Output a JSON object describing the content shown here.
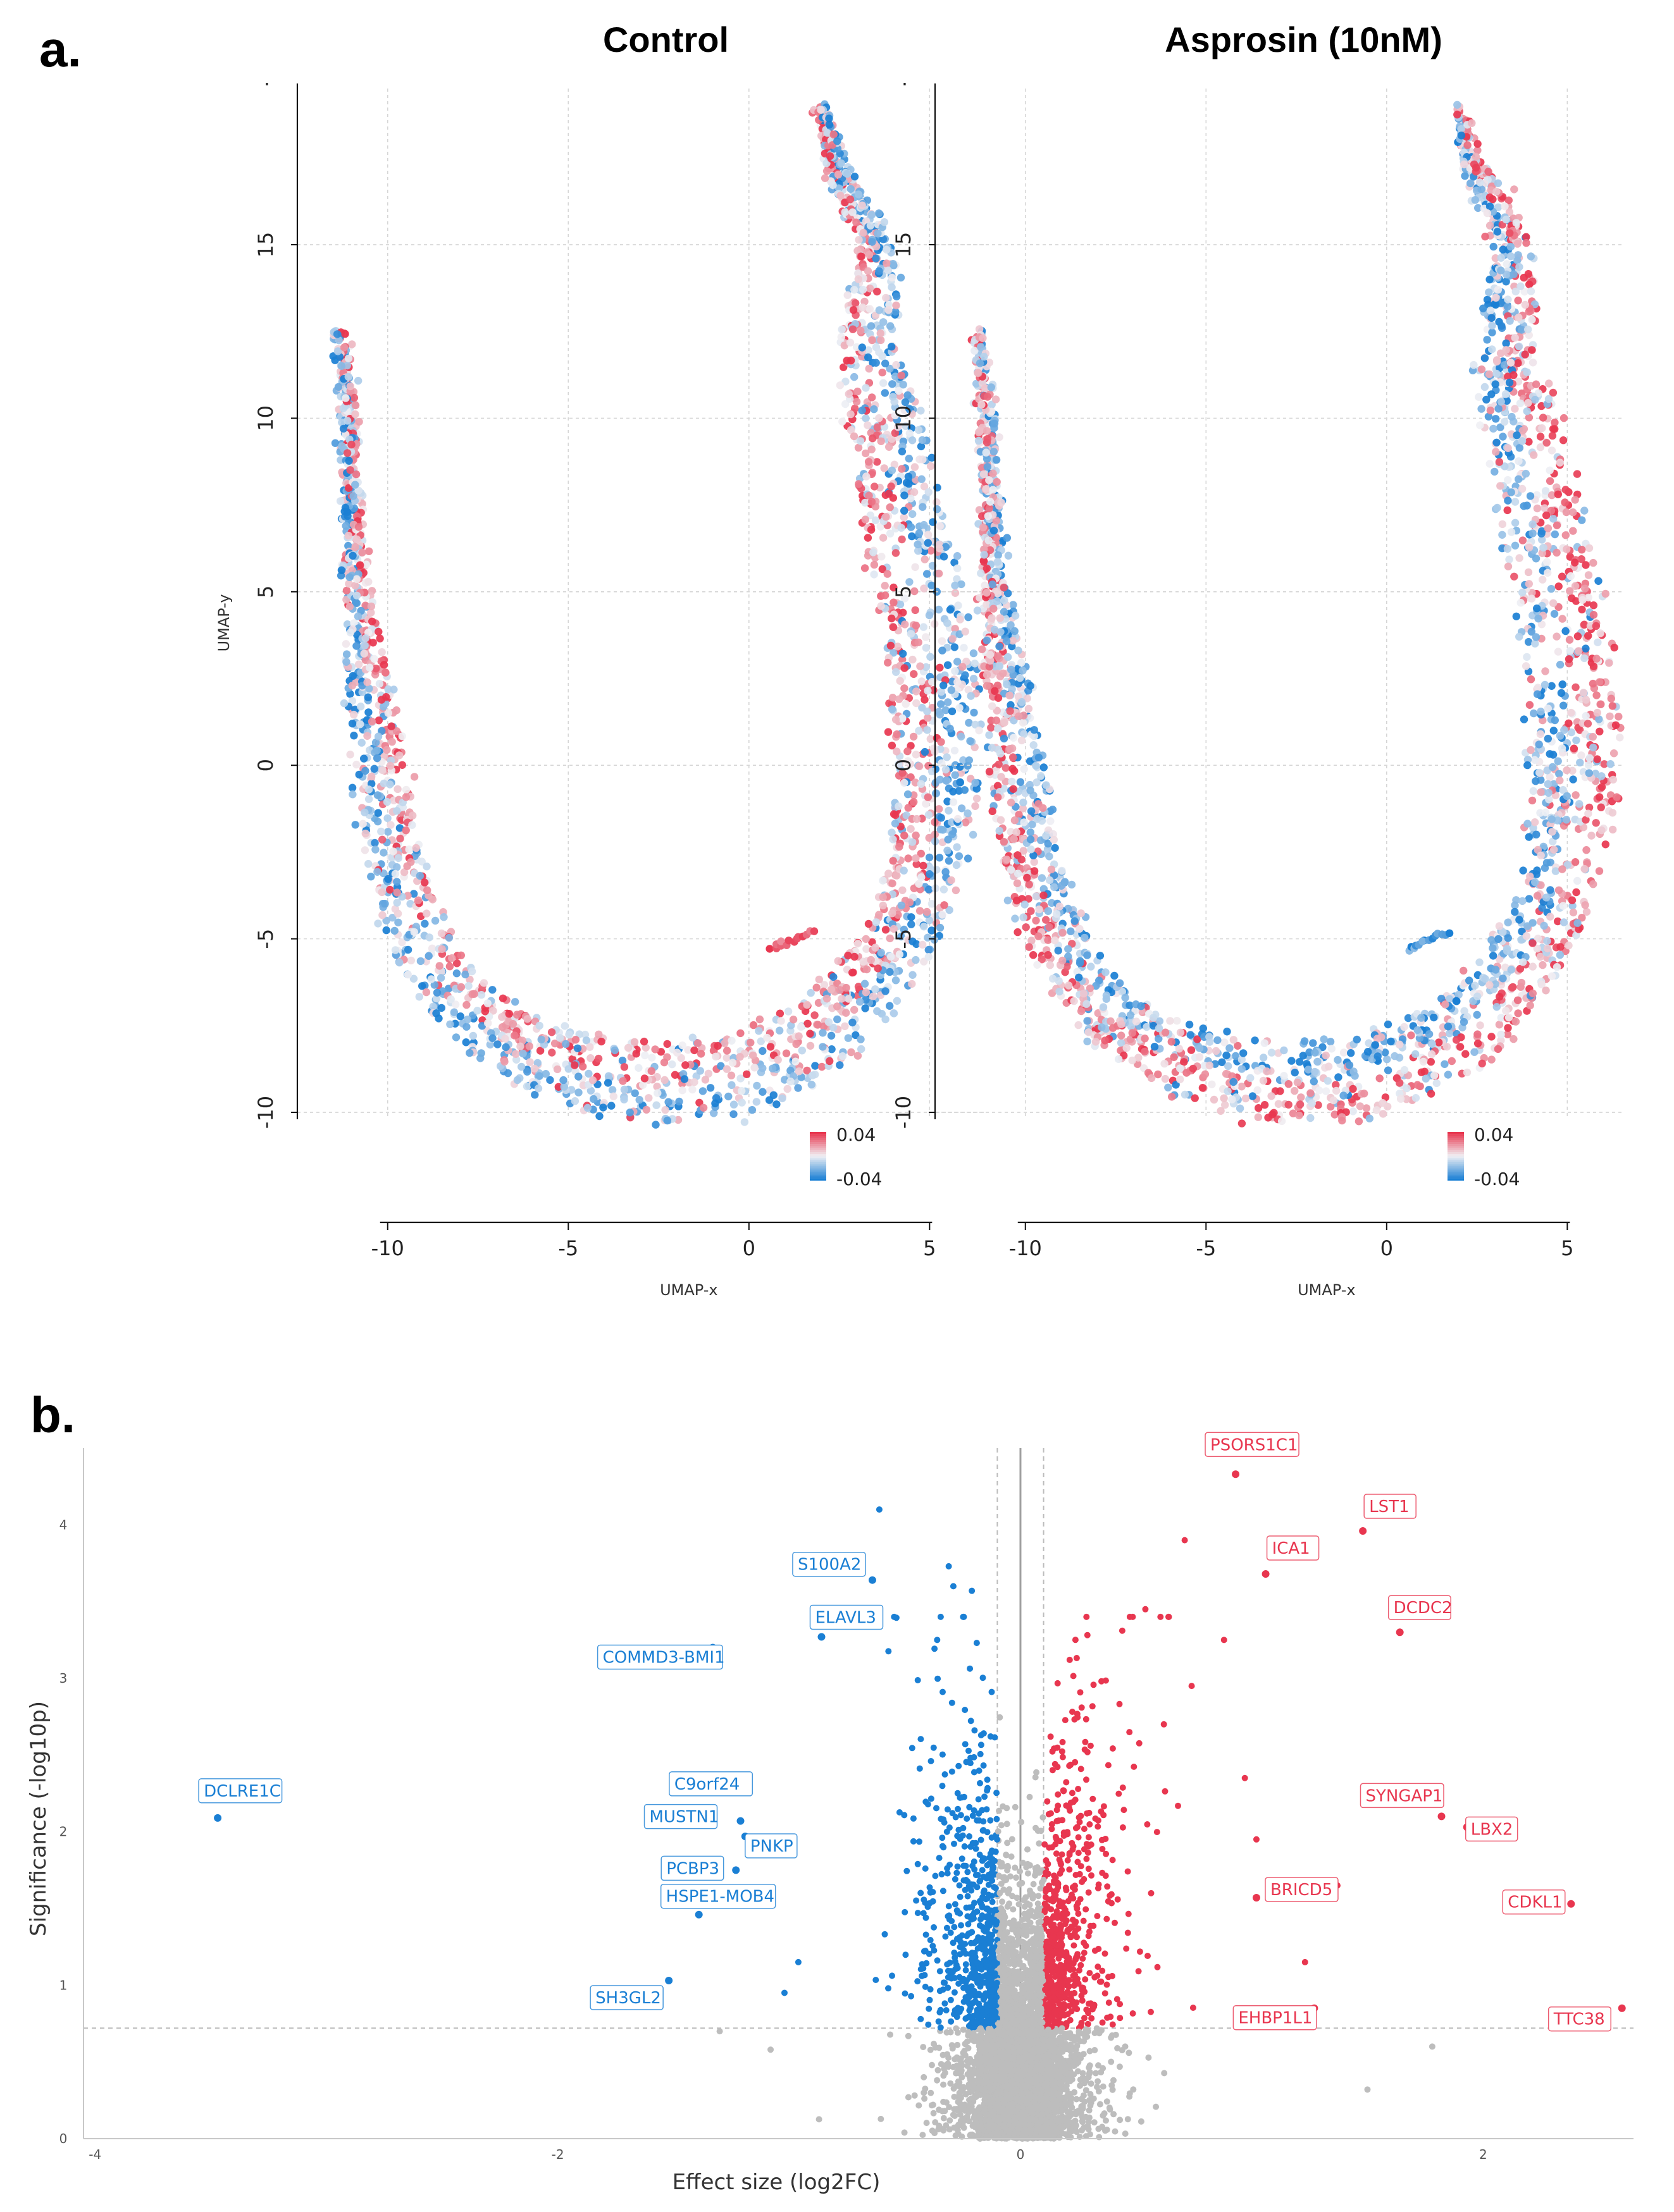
{
  "figure": {
    "panel_a_label": "a.",
    "panel_b_label": "b."
  },
  "colors": {
    "positive": "#e8364f",
    "negative": "#1a7fd4",
    "neutral": "#bdbdbd",
    "grid": "#d6d6d6"
  },
  "chart_data": [
    {
      "type": "scatter",
      "subtype": "umap",
      "titles": [
        "Control",
        "Asprosin (10nM)"
      ],
      "xlabel": "UMAP-x",
      "ylabel": "UMAP-y",
      "xlim": [
        -12.5,
        6.5
      ],
      "ylim": [
        -10.2,
        19.5
      ],
      "xticks": [
        -10,
        -5,
        0,
        5
      ],
      "xtick_labels": [
        "-10",
        "-5",
        "0",
        "5"
      ],
      "yticks": [
        -10,
        -5,
        0,
        5,
        10,
        15
      ],
      "ytick_labels": [
        "-10",
        "-5",
        "0",
        "5",
        "10",
        "15"
      ],
      "top_tick_fragment": "·",
      "color_scale": {
        "min": -0.04,
        "max": 0.04,
        "labels": [
          "0.04",
          "-0.04"
        ]
      },
      "trajectory": [
        [
          -11.3,
          12.5
        ],
        [
          -11.1,
          10.5
        ],
        [
          -11,
          8
        ],
        [
          -10.9,
          5.5
        ],
        [
          -10.7,
          3.5
        ],
        [
          -10.4,
          1.5
        ],
        [
          -10.2,
          -0.5
        ],
        [
          -9.9,
          -2.5
        ],
        [
          -9.5,
          -4
        ],
        [
          -8.9,
          -5.5
        ],
        [
          -8,
          -6.8
        ],
        [
          -6.8,
          -7.9
        ],
        [
          -5.3,
          -8.6
        ],
        [
          -3.5,
          -9.1
        ],
        [
          -1.8,
          -9.2
        ],
        [
          0,
          -8.9
        ],
        [
          1.5,
          -8.1
        ],
        [
          2.8,
          -7
        ],
        [
          3.9,
          -5.5
        ],
        [
          4.7,
          -3.6
        ],
        [
          5.1,
          -1.5
        ],
        [
          5.2,
          0.5
        ],
        [
          5.1,
          2.5
        ],
        [
          4.8,
          4.5
        ],
        [
          4.4,
          6.5
        ],
        [
          4,
          8.5
        ],
        [
          3.6,
          10.5
        ],
        [
          3.2,
          12
        ],
        [
          3.5,
          13.5
        ],
        [
          3.5,
          14.8
        ],
        [
          3,
          16
        ],
        [
          2.5,
          17
        ],
        [
          2.2,
          18.2
        ],
        [
          2,
          19
        ]
      ],
      "widths": [
        0.2,
        0.3,
        0.4,
        0.6,
        1,
        1.3,
        1.5,
        1.6,
        1.6,
        1.6,
        1.7,
        1.9,
        2.1,
        2.3,
        2.4,
        2.4,
        2.3,
        2.2,
        2.1,
        2.2,
        2.3,
        2.5,
        2.5,
        2.4,
        2.3,
        2.2,
        2,
        1.6,
        1.4,
        1,
        0.8,
        0.6,
        0.4,
        0.2
      ],
      "side_cluster": {
        "x": [
          0.6,
          1.7
        ],
        "y": [
          -5.3,
          -4.8
        ]
      },
      "control": {
        "inner_mean": 0.012,
        "outer_mean": -0.014,
        "seed": 11
      },
      "asprosin": {
        "inner_mean": -0.014,
        "outer_mean": 0.016,
        "seed": 29
      }
    },
    {
      "type": "scatter",
      "subtype": "volcano",
      "xlabel": "Effect size (log2FC)",
      "ylabel": "Significance (-log10p)",
      "xlim": [
        -4.05,
        2.65
      ],
      "ylim": [
        0,
        4.5
      ],
      "xticks": [
        -4,
        -2,
        0,
        2
      ],
      "xtick_labels": [
        "-4",
        "-2",
        "0",
        "2"
      ],
      "yticks": [
        0,
        1,
        2,
        3,
        4
      ],
      "ytick_labels": [
        "0",
        "1",
        "2",
        "3",
        "4"
      ],
      "fc_threshold": 0.1,
      "p_threshold": 0.72,
      "labeled_genes": [
        {
          "gene": "PSORS1C1",
          "x": 0.93,
          "y": 4.33,
          "dir": "up"
        },
        {
          "gene": "LST1",
          "x": 1.48,
          "y": 3.96,
          "dir": "up"
        },
        {
          "gene": "ICA1",
          "x": 1.06,
          "y": 3.68,
          "dir": "up"
        },
        {
          "gene": "DCDC2",
          "x": 1.64,
          "y": 3.3,
          "dir": "up"
        },
        {
          "gene": "SYNGAP1",
          "x": 1.82,
          "y": 2.1,
          "dir": "up"
        },
        {
          "gene": "LBX2",
          "x": 1.93,
          "y": 2.03,
          "dir": "up"
        },
        {
          "gene": "BRICD5",
          "x": 1.02,
          "y": 1.57,
          "dir": "up"
        },
        {
          "gene": "CDKL1",
          "x": 2.38,
          "y": 1.53,
          "dir": "up"
        },
        {
          "gene": "EHBP1L1",
          "x": 1.27,
          "y": 0.85,
          "dir": "up"
        },
        {
          "gene": "TTC38",
          "x": 2.6,
          "y": 0.85,
          "dir": "up"
        },
        {
          "gene": "S100A2",
          "x": -0.64,
          "y": 3.64,
          "dir": "down"
        },
        {
          "gene": "ELAVL3",
          "x": -0.86,
          "y": 3.27,
          "dir": "down"
        },
        {
          "gene": "COMMD3-BMI1",
          "x": -1.33,
          "y": 3.2,
          "dir": "down"
        },
        {
          "gene": "DCLRE1C",
          "x": -3.47,
          "y": 2.09,
          "dir": "down"
        },
        {
          "gene": "C9orf24",
          "x": -1.19,
          "y": 2.3,
          "dir": "down"
        },
        {
          "gene": "MUSTN1",
          "x": -1.21,
          "y": 2.07,
          "dir": "down"
        },
        {
          "gene": "PNKP",
          "x": -1.19,
          "y": 1.97,
          "dir": "down"
        },
        {
          "gene": "PCBP3",
          "x": -1.23,
          "y": 1.75,
          "dir": "down"
        },
        {
          "gene": "HSPE1-MOB4",
          "x": -1.39,
          "y": 1.46,
          "dir": "down"
        },
        {
          "gene": "SH3GL2",
          "x": -1.52,
          "y": 1.03,
          "dir": "down"
        }
      ],
      "extra_points": [
        {
          "x": -0.61,
          "y": 4.1
        },
        {
          "x": -0.31,
          "y": 3.73
        },
        {
          "x": -0.29,
          "y": 3.6
        },
        {
          "x": -0.21,
          "y": 3.57
        },
        {
          "x": -0.36,
          "y": 3.25
        },
        {
          "x": 0.71,
          "y": 3.9
        },
        {
          "x": 0.54,
          "y": 3.45
        },
        {
          "x": 0.44,
          "y": 3.31
        },
        {
          "x": 0.88,
          "y": 3.25
        },
        {
          "x": 0.74,
          "y": 2.95
        },
        {
          "x": 0.62,
          "y": 2.7
        },
        {
          "x": 0.97,
          "y": 2.35
        },
        {
          "x": 1.02,
          "y": 1.95
        },
        {
          "x": 1.23,
          "y": 1.15
        },
        {
          "x": 1.37,
          "y": 1.65
        },
        {
          "x": -0.96,
          "y": 1.15
        },
        {
          "x": -1.02,
          "y": 0.95
        },
        {
          "x": 1.5,
          "y": 0.32
        },
        {
          "x": -1.3,
          "y": 0.7
        },
        {
          "x": -1.08,
          "y": 0.58
        },
        {
          "x": 1.78,
          "y": 0.6
        }
      ]
    }
  ]
}
